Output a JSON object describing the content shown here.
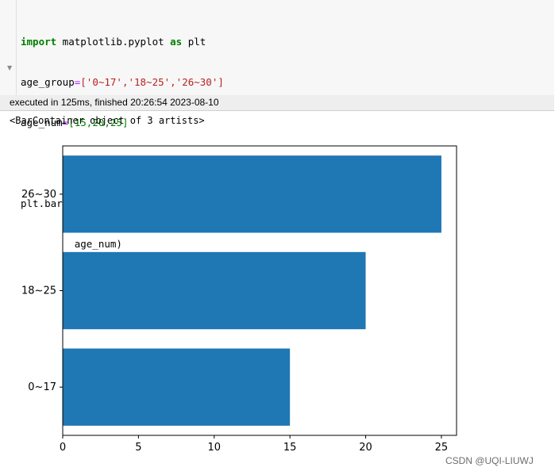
{
  "code": {
    "line1_kw1": "import",
    "line1_mid": " matplotlib.pyplot ",
    "line1_kw2": "as",
    "line1_end": " plt",
    "line2_var": "age_group",
    "line2_eq": "=",
    "line2_val": "['0~17','18~25','26~30']",
    "line3_var": "age_num",
    "line3_eq": "=",
    "line3_val": "[15,20,25]",
    "line5": "plt.barh(age_group,",
    "line6": "         age_num)"
  },
  "execution_status": "executed in 125ms, finished 20:26:54 2023-08-10",
  "output_text": "<BarContainer object of 3 artists>",
  "watermark": "CSDN @UQI-LIUWJ",
  "chart_data": {
    "type": "bar",
    "orientation": "horizontal",
    "categories": [
      "0~17",
      "18~25",
      "26~30"
    ],
    "values": [
      15,
      20,
      25
    ],
    "xlim": [
      0,
      26
    ],
    "xticks": [
      0,
      5,
      10,
      15,
      20,
      25
    ],
    "bar_color": "#1f77b4",
    "grid": false,
    "title": "",
    "xlabel": "",
    "ylabel": ""
  }
}
